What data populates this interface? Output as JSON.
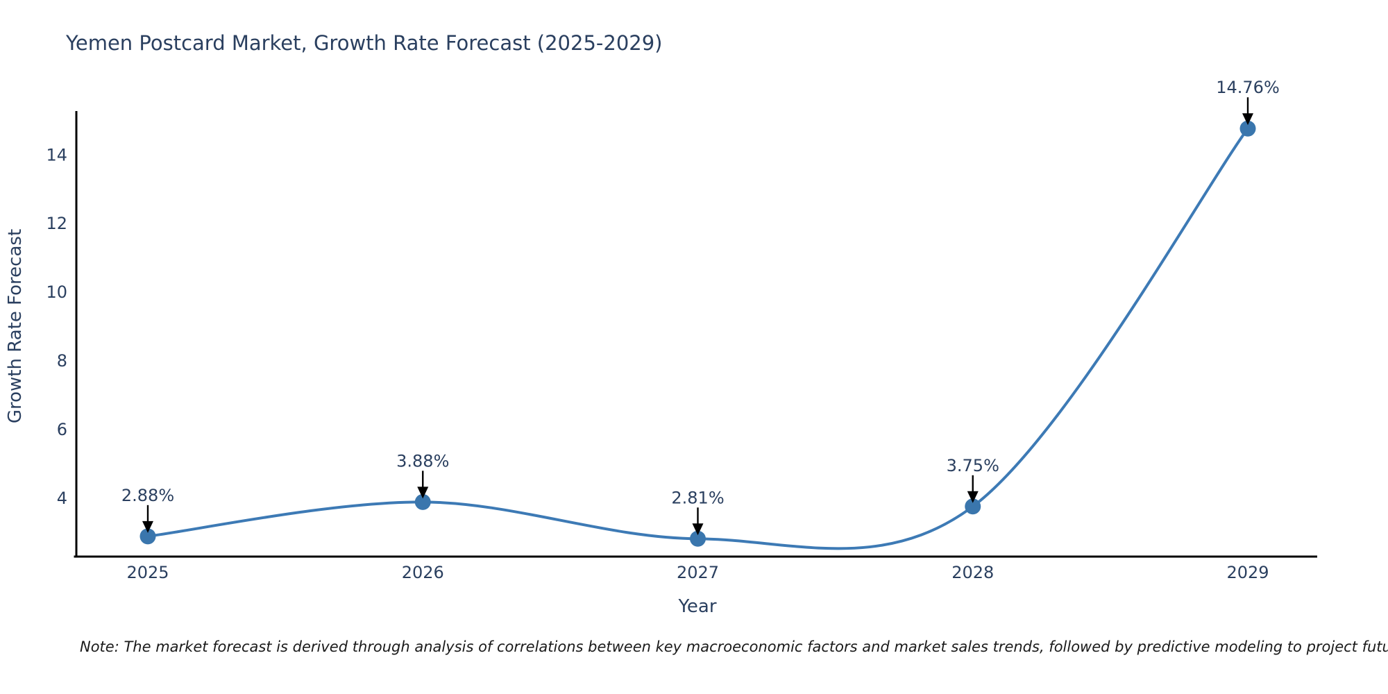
{
  "chart_data": {
    "type": "line",
    "title": "Yemen Postcard Market, Growth Rate Forecast (2025-2029)",
    "xlabel": "Year",
    "ylabel": "Growth Rate Forecast",
    "categories": [
      "2025",
      "2026",
      "2027",
      "2028",
      "2029"
    ],
    "series": [
      {
        "name": "Growth Rate Forecast",
        "values": [
          2.88,
          3.88,
          2.81,
          3.75,
          14.76
        ],
        "point_labels": [
          "2.88%",
          "3.88%",
          "2.81%",
          "3.75%",
          "14.76%"
        ]
      }
    ],
    "y_ticks": [
      4,
      6,
      8,
      10,
      12,
      14
    ],
    "ylim": [
      2.29,
      15.27
    ],
    "line_shape": "spline",
    "markers": true,
    "grid": false,
    "legend": "none",
    "colors": {
      "line": "#3d7ab5",
      "marker": "#3a76ad",
      "text": "#2a3f5f",
      "axis": "#000000",
      "arrow": "#000000",
      "note_text": "#1a1a1a"
    }
  },
  "footnote": {
    "text": "Note: The market forecast is derived through analysis of correlations between key macroeconomic factors and market sales trends, followed by predictive modeling to project future sales"
  }
}
